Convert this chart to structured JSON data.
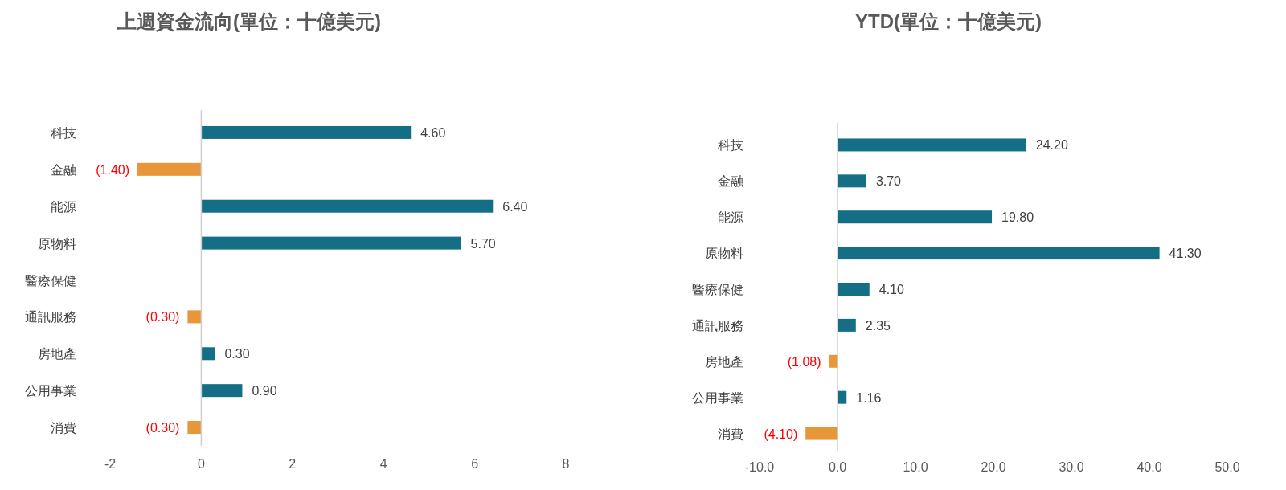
{
  "chart_data": [
    {
      "type": "bar",
      "orientation": "horizontal",
      "title": "上週資金流向(單位：十億美元)",
      "categories": [
        "科技",
        "金融",
        "能源",
        "原物料",
        "醫療保健",
        "通訊服務",
        "房地產",
        "公用事業",
        "消費"
      ],
      "values": [
        4.6,
        -1.4,
        6.4,
        5.7,
        null,
        -0.3,
        0.3,
        0.9,
        -0.3
      ],
      "colors": [
        "#136e86",
        "#e8963a",
        "#136e86",
        "#136e86",
        null,
        "#e8963a",
        "#136e86",
        "#136e86",
        "#e8963a"
      ],
      "value_labels": [
        "4.60",
        "(1.40)",
        "6.40",
        "5.70",
        null,
        "(0.30)",
        "0.30",
        "0.90",
        "(0.30)"
      ],
      "xlim": [
        -2,
        8
      ],
      "xticks": [
        -2,
        0,
        2,
        4,
        6,
        8
      ]
    },
    {
      "type": "bar",
      "orientation": "horizontal",
      "title": "YTD(單位：十億美元)",
      "categories": [
        "科技",
        "金融",
        "能源",
        "原物料",
        "醫療保健",
        "通訊服務",
        "房地產",
        "公用事業",
        "消費"
      ],
      "values": [
        24.2,
        3.7,
        19.8,
        41.3,
        4.1,
        2.35,
        -1.08,
        1.16,
        -4.1
      ],
      "colors": [
        "#136e86",
        "#136e86",
        "#136e86",
        "#136e86",
        "#136e86",
        "#136e86",
        "#e8963a",
        "#136e86",
        "#e8963a"
      ],
      "value_labels": [
        "24.20",
        "3.70",
        "19.80",
        "41.30",
        "4.10",
        "2.35",
        "(1.08)",
        "1.16",
        "(4.10)"
      ],
      "xlim": [
        -10,
        50
      ],
      "xticks": [
        {
          "value": -10,
          "label": "-10.0"
        },
        {
          "value": 0,
          "label": "0.0"
        },
        {
          "value": 10,
          "label": "10.0"
        },
        {
          "value": 20,
          "label": "20.0"
        },
        {
          "value": 30,
          "label": "30.0"
        },
        {
          "value": 40,
          "label": "40.0"
        },
        {
          "value": 50,
          "label": "50.0"
        }
      ]
    }
  ]
}
